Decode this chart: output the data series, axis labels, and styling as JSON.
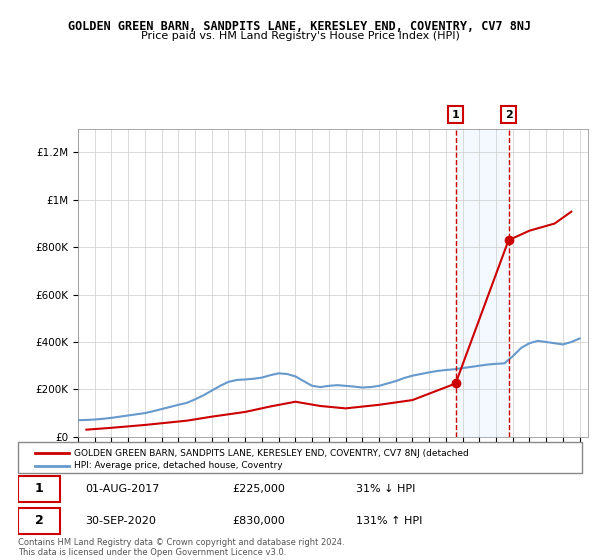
{
  "title": "GOLDEN GREEN BARN, SANDPITS LANE, KERESLEY END, COVENTRY, CV7 8NJ",
  "subtitle": "Price paid vs. HM Land Registry's House Price Index (HPI)",
  "hpi_label": "HPI: Average price, detached house, Coventry",
  "property_label": "GOLDEN GREEN BARN, SANDPITS LANE, KERESLEY END, COVENTRY, CV7 8NJ (detached",
  "footnote": "Contains HM Land Registry data © Crown copyright and database right 2024.\nThis data is licensed under the Open Government Licence v3.0.",
  "sales": [
    {
      "num": 1,
      "date": "01-AUG-2017",
      "price": 225000,
      "pct": "31% ↓ HPI",
      "year_x": 2017.583
    },
    {
      "num": 2,
      "date": "30-SEP-2020",
      "price": 830000,
      "pct": "131% ↑ HPI",
      "year_x": 2020.75
    }
  ],
  "hpi_color": "#6699cc",
  "price_color": "#cc0000",
  "shade_color": "#ddeeff",
  "marker_color_1": "#cc0000",
  "marker_color_2": "#cc0000",
  "ylim": [
    0,
    1300000
  ],
  "xlim_start": 1995.0,
  "xlim_end": 2025.5,
  "hpi_x": [
    1995,
    1995.5,
    1996,
    1996.5,
    1997,
    1997.5,
    1998,
    1998.5,
    1999,
    1999.5,
    2000,
    2000.5,
    2001,
    2001.5,
    2002,
    2002.5,
    2003,
    2003.5,
    2004,
    2004.5,
    2005,
    2005.5,
    2006,
    2006.5,
    2007,
    2007.5,
    2008,
    2008.5,
    2009,
    2009.5,
    2010,
    2010.5,
    2011,
    2011.5,
    2012,
    2012.5,
    2013,
    2013.5,
    2014,
    2014.5,
    2015,
    2015.5,
    2016,
    2016.5,
    2017,
    2017.5,
    2018,
    2018.5,
    2019,
    2019.5,
    2020,
    2020.5,
    2021,
    2021.5,
    2022,
    2022.5,
    2023,
    2023.5,
    2024,
    2024.5,
    2025
  ],
  "hpi_y": [
    70000,
    71000,
    73000,
    76000,
    80000,
    85000,
    90000,
    95000,
    100000,
    108000,
    117000,
    126000,
    135000,
    143000,
    158000,
    175000,
    195000,
    215000,
    232000,
    240000,
    242000,
    245000,
    250000,
    260000,
    268000,
    265000,
    255000,
    235000,
    215000,
    210000,
    215000,
    218000,
    215000,
    212000,
    208000,
    210000,
    215000,
    225000,
    235000,
    248000,
    258000,
    265000,
    272000,
    278000,
    282000,
    285000,
    290000,
    295000,
    300000,
    305000,
    308000,
    310000,
    340000,
    375000,
    395000,
    405000,
    400000,
    395000,
    390000,
    400000,
    415000
  ],
  "price_x": [
    1995.5,
    1997.0,
    1999.0,
    2001.5,
    2003.0,
    2005.0,
    2006.5,
    2008.0,
    2009.5,
    2011.0,
    2013.0,
    2015.0,
    2017.583,
    2020.75,
    2022.0,
    2023.5,
    2024.5
  ],
  "price_y": [
    30000,
    38000,
    50000,
    68000,
    85000,
    105000,
    128000,
    148000,
    130000,
    120000,
    135000,
    155000,
    225000,
    830000,
    870000,
    900000,
    950000
  ]
}
